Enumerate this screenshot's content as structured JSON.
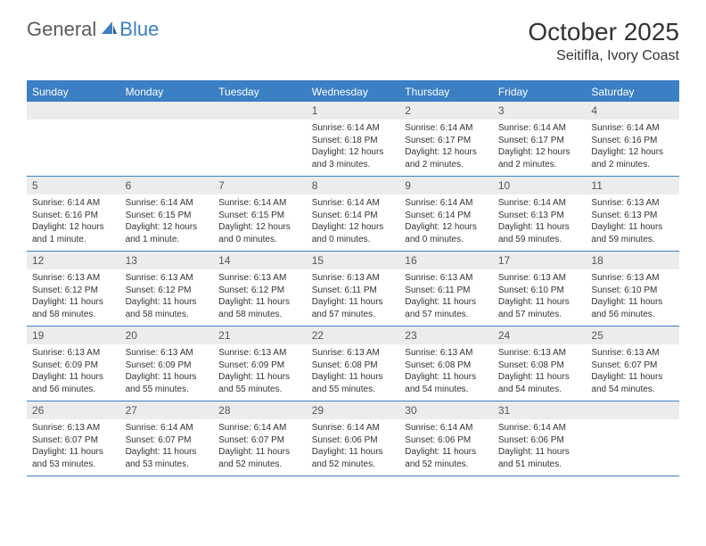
{
  "logo": {
    "general": "General",
    "blue": "Blue"
  },
  "title": "October 2025",
  "location": "Seitifla, Ivory Coast",
  "colors": {
    "header_bg": "#3b7fc4",
    "header_text": "#ffffff",
    "daynum_bg": "#ececec",
    "border": "#3b7fc4",
    "body_text": "#333333"
  },
  "day_headers": [
    "Sunday",
    "Monday",
    "Tuesday",
    "Wednesday",
    "Thursday",
    "Friday",
    "Saturday"
  ],
  "weeks": [
    [
      {
        "n": "",
        "sr": "",
        "ss": "",
        "dl": ""
      },
      {
        "n": "",
        "sr": "",
        "ss": "",
        "dl": ""
      },
      {
        "n": "",
        "sr": "",
        "ss": "",
        "dl": ""
      },
      {
        "n": "1",
        "sr": "Sunrise: 6:14 AM",
        "ss": "Sunset: 6:18 PM",
        "dl": "Daylight: 12 hours and 3 minutes."
      },
      {
        "n": "2",
        "sr": "Sunrise: 6:14 AM",
        "ss": "Sunset: 6:17 PM",
        "dl": "Daylight: 12 hours and 2 minutes."
      },
      {
        "n": "3",
        "sr": "Sunrise: 6:14 AM",
        "ss": "Sunset: 6:17 PM",
        "dl": "Daylight: 12 hours and 2 minutes."
      },
      {
        "n": "4",
        "sr": "Sunrise: 6:14 AM",
        "ss": "Sunset: 6:16 PM",
        "dl": "Daylight: 12 hours and 2 minutes."
      }
    ],
    [
      {
        "n": "5",
        "sr": "Sunrise: 6:14 AM",
        "ss": "Sunset: 6:16 PM",
        "dl": "Daylight: 12 hours and 1 minute."
      },
      {
        "n": "6",
        "sr": "Sunrise: 6:14 AM",
        "ss": "Sunset: 6:15 PM",
        "dl": "Daylight: 12 hours and 1 minute."
      },
      {
        "n": "7",
        "sr": "Sunrise: 6:14 AM",
        "ss": "Sunset: 6:15 PM",
        "dl": "Daylight: 12 hours and 0 minutes."
      },
      {
        "n": "8",
        "sr": "Sunrise: 6:14 AM",
        "ss": "Sunset: 6:14 PM",
        "dl": "Daylight: 12 hours and 0 minutes."
      },
      {
        "n": "9",
        "sr": "Sunrise: 6:14 AM",
        "ss": "Sunset: 6:14 PM",
        "dl": "Daylight: 12 hours and 0 minutes."
      },
      {
        "n": "10",
        "sr": "Sunrise: 6:14 AM",
        "ss": "Sunset: 6:13 PM",
        "dl": "Daylight: 11 hours and 59 minutes."
      },
      {
        "n": "11",
        "sr": "Sunrise: 6:13 AM",
        "ss": "Sunset: 6:13 PM",
        "dl": "Daylight: 11 hours and 59 minutes."
      }
    ],
    [
      {
        "n": "12",
        "sr": "Sunrise: 6:13 AM",
        "ss": "Sunset: 6:12 PM",
        "dl": "Daylight: 11 hours and 58 minutes."
      },
      {
        "n": "13",
        "sr": "Sunrise: 6:13 AM",
        "ss": "Sunset: 6:12 PM",
        "dl": "Daylight: 11 hours and 58 minutes."
      },
      {
        "n": "14",
        "sr": "Sunrise: 6:13 AM",
        "ss": "Sunset: 6:12 PM",
        "dl": "Daylight: 11 hours and 58 minutes."
      },
      {
        "n": "15",
        "sr": "Sunrise: 6:13 AM",
        "ss": "Sunset: 6:11 PM",
        "dl": "Daylight: 11 hours and 57 minutes."
      },
      {
        "n": "16",
        "sr": "Sunrise: 6:13 AM",
        "ss": "Sunset: 6:11 PM",
        "dl": "Daylight: 11 hours and 57 minutes."
      },
      {
        "n": "17",
        "sr": "Sunrise: 6:13 AM",
        "ss": "Sunset: 6:10 PM",
        "dl": "Daylight: 11 hours and 57 minutes."
      },
      {
        "n": "18",
        "sr": "Sunrise: 6:13 AM",
        "ss": "Sunset: 6:10 PM",
        "dl": "Daylight: 11 hours and 56 minutes."
      }
    ],
    [
      {
        "n": "19",
        "sr": "Sunrise: 6:13 AM",
        "ss": "Sunset: 6:09 PM",
        "dl": "Daylight: 11 hours and 56 minutes."
      },
      {
        "n": "20",
        "sr": "Sunrise: 6:13 AM",
        "ss": "Sunset: 6:09 PM",
        "dl": "Daylight: 11 hours and 55 minutes."
      },
      {
        "n": "21",
        "sr": "Sunrise: 6:13 AM",
        "ss": "Sunset: 6:09 PM",
        "dl": "Daylight: 11 hours and 55 minutes."
      },
      {
        "n": "22",
        "sr": "Sunrise: 6:13 AM",
        "ss": "Sunset: 6:08 PM",
        "dl": "Daylight: 11 hours and 55 minutes."
      },
      {
        "n": "23",
        "sr": "Sunrise: 6:13 AM",
        "ss": "Sunset: 6:08 PM",
        "dl": "Daylight: 11 hours and 54 minutes."
      },
      {
        "n": "24",
        "sr": "Sunrise: 6:13 AM",
        "ss": "Sunset: 6:08 PM",
        "dl": "Daylight: 11 hours and 54 minutes."
      },
      {
        "n": "25",
        "sr": "Sunrise: 6:13 AM",
        "ss": "Sunset: 6:07 PM",
        "dl": "Daylight: 11 hours and 54 minutes."
      }
    ],
    [
      {
        "n": "26",
        "sr": "Sunrise: 6:13 AM",
        "ss": "Sunset: 6:07 PM",
        "dl": "Daylight: 11 hours and 53 minutes."
      },
      {
        "n": "27",
        "sr": "Sunrise: 6:14 AM",
        "ss": "Sunset: 6:07 PM",
        "dl": "Daylight: 11 hours and 53 minutes."
      },
      {
        "n": "28",
        "sr": "Sunrise: 6:14 AM",
        "ss": "Sunset: 6:07 PM",
        "dl": "Daylight: 11 hours and 52 minutes."
      },
      {
        "n": "29",
        "sr": "Sunrise: 6:14 AM",
        "ss": "Sunset: 6:06 PM",
        "dl": "Daylight: 11 hours and 52 minutes."
      },
      {
        "n": "30",
        "sr": "Sunrise: 6:14 AM",
        "ss": "Sunset: 6:06 PM",
        "dl": "Daylight: 11 hours and 52 minutes."
      },
      {
        "n": "31",
        "sr": "Sunrise: 6:14 AM",
        "ss": "Sunset: 6:06 PM",
        "dl": "Daylight: 11 hours and 51 minutes."
      },
      {
        "n": "",
        "sr": "",
        "ss": "",
        "dl": ""
      }
    ]
  ]
}
